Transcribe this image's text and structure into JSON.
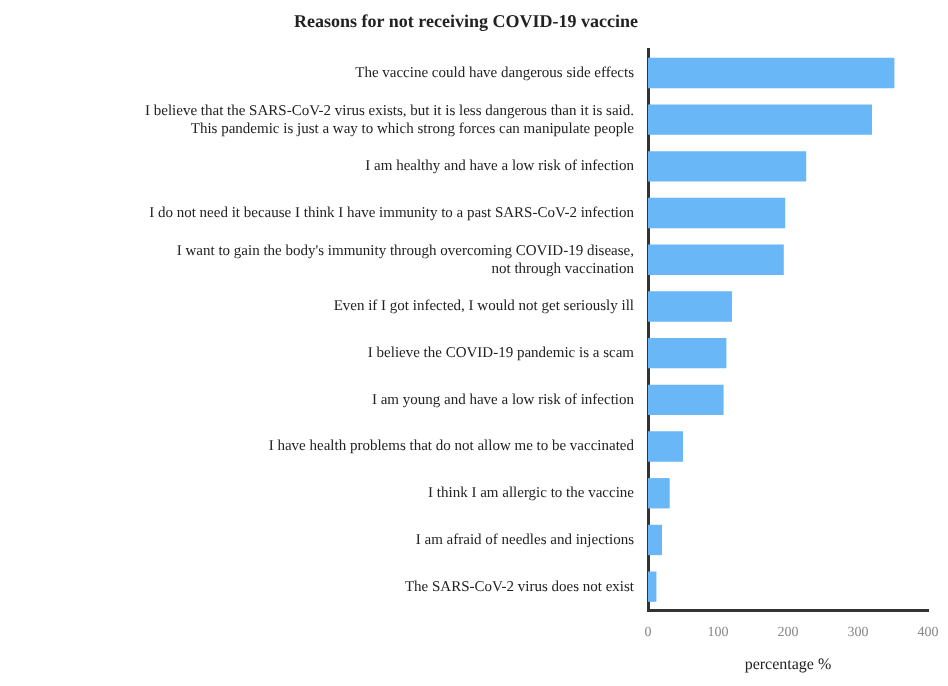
{
  "chart_data": {
    "type": "bar",
    "orientation": "horizontal",
    "title": "Reasons for not receiving COVID-19 vaccine",
    "xlabel": "percentage %",
    "categories": [
      "The vaccine could have dangerous side effects",
      "I believe that the SARS-CoV-2 virus exists, but it is less dangerous than it is said.\nThis pandemic is just a way to which strong forces can manipulate people",
      "I am healthy and have a low risk of infection",
      "I do not need it because I think I have immunity to a past SARS-CoV-2 infection",
      "I want to gain the body's immunity through overcoming COVID-19 disease,\nnot through vaccination",
      "Even if I got infected, I would not get seriously ill",
      "I believe the COVID-19 pandemic is a scam",
      "I am young and have a low risk of infection",
      "I have health problems that do not allow me to be vaccinated",
      "I think I am allergic to the vaccine",
      "I am afraid of needles and injections",
      "The SARS-CoV-2 virus does not exist"
    ],
    "values": [
      352,
      320,
      226,
      196,
      194,
      120,
      112,
      108,
      50,
      31,
      20,
      12
    ],
    "color": "#6ab7f7",
    "xlim": [
      0,
      400
    ],
    "xticks": [
      0,
      100,
      200,
      300,
      400
    ],
    "grid": false,
    "legend": false
  }
}
